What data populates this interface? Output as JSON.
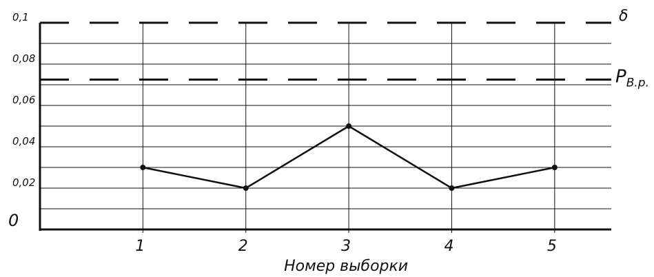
{
  "chart_data": {
    "type": "line",
    "x": [
      1,
      2,
      3,
      4,
      5
    ],
    "values": [
      0.03,
      0.02,
      0.05,
      0.02,
      0.03
    ],
    "xlabel": "Номер выборки",
    "ylabel": "",
    "ylim": [
      0,
      0.1
    ],
    "xlim": [
      0,
      5.55
    ],
    "grid": true,
    "yticks": [
      {
        "value": 0.1,
        "label": "0,1"
      },
      {
        "value": 0.08,
        "label": "0,08"
      },
      {
        "value": 0.06,
        "label": "0,06"
      },
      {
        "value": 0.04,
        "label": "0,04"
      },
      {
        "value": 0.02,
        "label": "0,02"
      }
    ],
    "origin_label": "0",
    "xticks": [
      {
        "value": 1,
        "label": "1"
      },
      {
        "value": 2,
        "label": "2"
      },
      {
        "value": 3,
        "label": "3"
      },
      {
        "value": 4,
        "label": "4"
      },
      {
        "value": 5,
        "label": "5"
      }
    ],
    "reference_lines": [
      {
        "name": "δ",
        "value": 0.1,
        "style": "dashed"
      },
      {
        "name": "P",
        "subscript": "В.р.",
        "value": 0.0725,
        "style": "dashed"
      }
    ],
    "colors": {
      "line": "#111111",
      "grid": "#111111",
      "axis": "#111111"
    }
  }
}
